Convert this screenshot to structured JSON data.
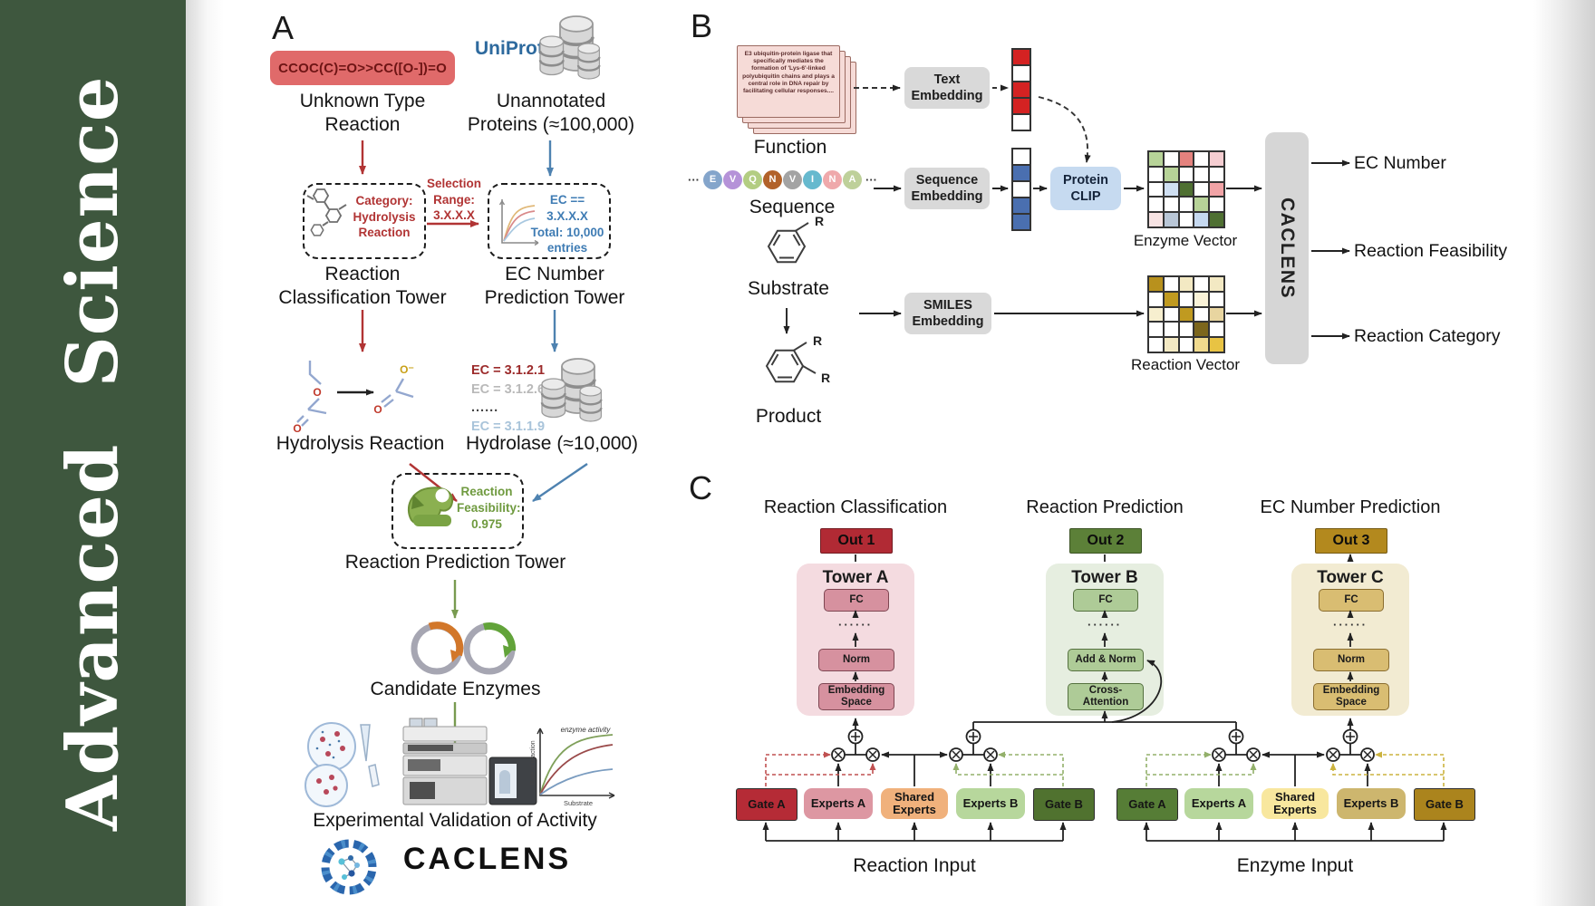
{
  "journal": {
    "name": "Advanced Science"
  },
  "colors": {
    "sidebar_green": "#3e573e",
    "uniprot_blue": "#2e6a9e",
    "accent_red": "#b13434",
    "accent_blue": "#4e82b0",
    "accent_green": "#789b50",
    "smiles_box_red": "#e06a6a",
    "out1_red": "#b12a34",
    "out2_green": "#5c8038",
    "out3_gold": "#b3891e"
  },
  "panelA": {
    "label": "A",
    "smiles": "CCOC(C)=O>>CC([O-])=O",
    "unknown_reaction": "Unknown Type\nReaction",
    "uniprot": "UniProt",
    "unannotated": "Unannotated\nProteins (≈100,000)",
    "category_box": "Category:\nHydrolysis\nReaction",
    "selection": "Selection\nRange:\n3.X.X.X",
    "ec_box": "EC == 3.X.X.X\nTotal: 10,000\nentries",
    "classification_tower": "Reaction\nClassification Tower",
    "ec_tower": "EC Number\nPrediction Tower",
    "ec_list": [
      "EC = 3.1.2.1",
      "EC = 3.1.2.6",
      "......",
      "EC = 3.1.1.9"
    ],
    "hydrolysis": "Hydrolysis Reaction",
    "hydrolase": "Hydrolase (≈10,000)",
    "enzyme_badge": "Enzyme",
    "feasibility": "Reaction\nFeasibility:\n0.975",
    "prediction_tower": "Reaction Prediction Tower",
    "candidates": "Candidate Enzymes",
    "validation": "Experimental Validation of Activity",
    "brand": "CACLENS",
    "kinetics": {
      "annotation": "enzyme activity",
      "ylabel": "Rate of reaction",
      "xlabel": "Substrate"
    }
  },
  "panelB": {
    "label": "B",
    "function_text": "E3 ubiquitin-protein ligase that specifically mediates the formation of 'Lys-6'-linked polyubiquitin chains and plays a central role in DNA repair by facilitating cellular responses....",
    "function": "Function",
    "ellipsis": "···",
    "residues": [
      {
        "letter": "E",
        "color": "#84a5cb"
      },
      {
        "letter": "V",
        "color": "#b592d8"
      },
      {
        "letter": "Q",
        "color": "#b3cd82"
      },
      {
        "letter": "N",
        "color": "#b2622a"
      },
      {
        "letter": "V",
        "color": "#a3a3a3"
      },
      {
        "letter": "I",
        "color": "#66b9ce"
      },
      {
        "letter": "N",
        "color": "#efa9ab"
      },
      {
        "letter": "A",
        "color": "#bed09a"
      }
    ],
    "sequence": "Sequence",
    "text_embedding": "Text\nEmbedding",
    "sequence_embedding": "Sequence\nEmbedding",
    "smiles_embedding": "SMILES\nEmbedding",
    "protein_clip": "Protein\nCLIP",
    "substrate": "Substrate",
    "product": "Product",
    "r_group": "R",
    "enzyme_vector": "Enzyme Vector",
    "reaction_vector": "Reaction Vector",
    "caclens": "CACLENS",
    "outputs": [
      "EC Number",
      "Reaction Feasibility",
      "Reaction Category"
    ],
    "text_vector_cells": [
      "#d42222",
      "#ffffff",
      "#d42222",
      "#d42222",
      "#ffffff"
    ],
    "seq_vector_cells": [
      "#ffffff",
      "#4a6fb0",
      "#ffffff",
      "#4a6fb0",
      "#4a6fb0"
    ],
    "enzyme_grid_cells": [
      "#b7d398",
      "#ffffff",
      "#e4827e",
      "#ffffff",
      "#f5cdd1",
      "#ffffff",
      "#b7d398",
      "#ffffff",
      "#ffffff",
      "#ffffff",
      "#ffffff",
      "#cfdff2",
      "#4f7032",
      "#ffffff",
      "#f1a3a6",
      "#ffffff",
      "#ffffff",
      "#ffffff",
      "#b7d398",
      "#ffffff",
      "#f7e3e3",
      "#b9c6d6",
      "#ffffff",
      "#c6d9f0",
      "#4f7032"
    ],
    "reaction_grid_cells": [
      "#b8911d",
      "#ffffff",
      "#f3e9c3",
      "#ffffff",
      "#f3e9c3",
      "#ffffff",
      "#c09a20",
      "#ffffff",
      "#faf3d8",
      "#ffffff",
      "#f7efcf",
      "#ffffff",
      "#c09a20",
      "#ffffff",
      "#e8d5a0",
      "#ffffff",
      "#ffffff",
      "#ffffff",
      "#7c661c",
      "#ffffff",
      "#ffffff",
      "#f3e9c3",
      "#ffffff",
      "#f0da8e",
      "#e8c343"
    ]
  },
  "panelC": {
    "label": "C",
    "headers": [
      "Reaction Classification",
      "Reaction Prediction",
      "EC Number Prediction"
    ],
    "towers": [
      {
        "out": "Out 1",
        "title": "Tower A",
        "fc": "FC",
        "dots": "······",
        "mid": "Norm",
        "bottom": "Embedding\nSpace"
      },
      {
        "out": "Out 2",
        "title": "Tower B",
        "fc": "FC",
        "dots": "······",
        "mid": "Add & Norm",
        "bottom": "Cross-\nAttention"
      },
      {
        "out": "Out 3",
        "title": "Tower C",
        "fc": "FC",
        "dots": "······",
        "mid": "Norm",
        "bottom": "Embedding\nSpace"
      }
    ],
    "groups": [
      {
        "input": "Reaction Input",
        "boxes": [
          "Gate A",
          "Experts A",
          "Shared\nExperts",
          "Experts B",
          "Gate B"
        ]
      },
      {
        "input": "Enzyme Input",
        "boxes": [
          "Gate A",
          "Experts A",
          "Shared\nExperts",
          "Experts B",
          "Gate B"
        ]
      }
    ]
  }
}
